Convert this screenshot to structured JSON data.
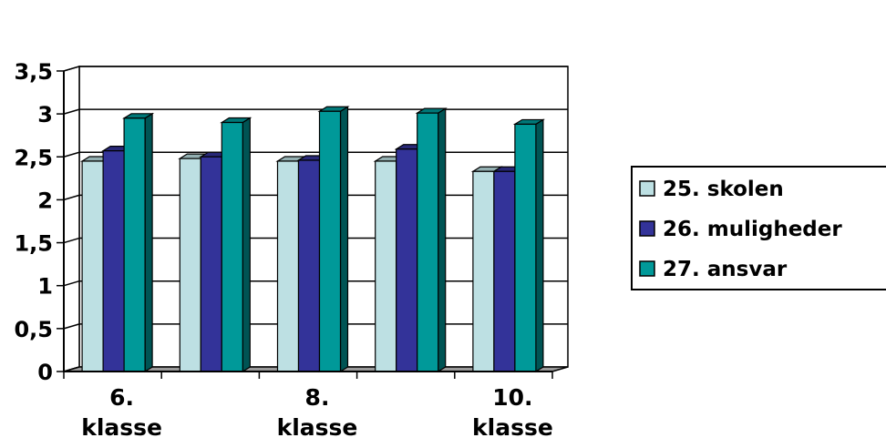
{
  "chart_data": {
    "type": "bar",
    "style": "3d-clustered-column",
    "categories": [
      [
        "6.",
        "klasse"
      ],
      [],
      [
        "8.",
        "klasse"
      ],
      [],
      [
        "10.",
        "klasse"
      ]
    ],
    "series": [
      {
        "name": "25. skolen",
        "color": "#bde0e3",
        "values": [
          2.45,
          2.48,
          2.45,
          2.45,
          2.33
        ]
      },
      {
        "name": "26. muligheder",
        "color": "#333399",
        "values": [
          2.57,
          2.5,
          2.46,
          2.59,
          2.33
        ]
      },
      {
        "name": "27. ansvar",
        "color": "#009999",
        "values": [
          2.95,
          2.9,
          3.03,
          3.01,
          2.88
        ]
      }
    ],
    "y_ticks": [
      "0",
      "0,5",
      "1",
      "1,5",
      "2",
      "2,5",
      "3",
      "3,5"
    ],
    "ylim": [
      0,
      3.5
    ],
    "grid": true,
    "legend_position": "right"
  }
}
